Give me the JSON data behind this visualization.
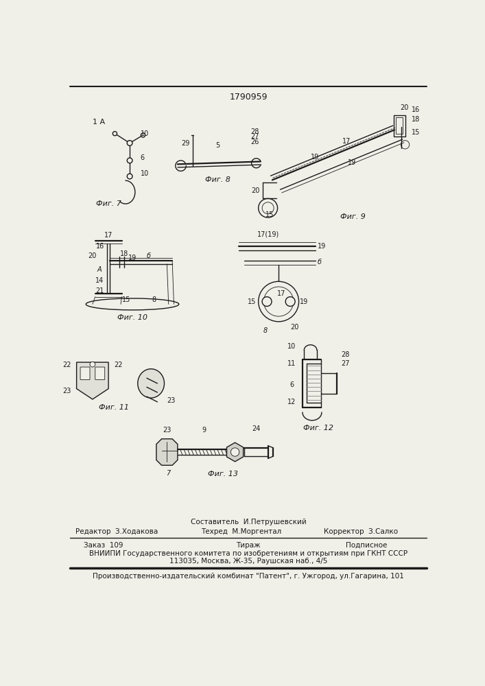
{
  "patent_number": "1790959",
  "bg": "#f0efe8",
  "lc": "#1a1a1a",
  "footer": {
    "s1": "Составитель  И.Петрушевский",
    "e1": "Редактор  З.Ходакова",
    "t1": "Техред  М.Моргентал",
    "k1": "Корректор  З.Салко",
    "z1": "Заказ  109",
    "ti": "Тираж",
    "po": "Подписное",
    "v1": "ВНИИПИ Государственного комитета по изобретениям и открытиям при ГКНТ СССР",
    "v2": "113035, Москва, Ж-35, Раушская наб., 4/5",
    "pr": "Производственно-издательский комбинат \"Патент\", г. Ужгород, ул.Гагарина, 101"
  },
  "figs": {
    "f7": "Фиг. 7",
    "f8": "Фиг. 8",
    "f9": "Фиг. 9",
    "f10": "Фиг. 10",
    "f11": "Фиг. 11",
    "f12": "Фиг. 12",
    "f13": "Фиг. 13"
  }
}
